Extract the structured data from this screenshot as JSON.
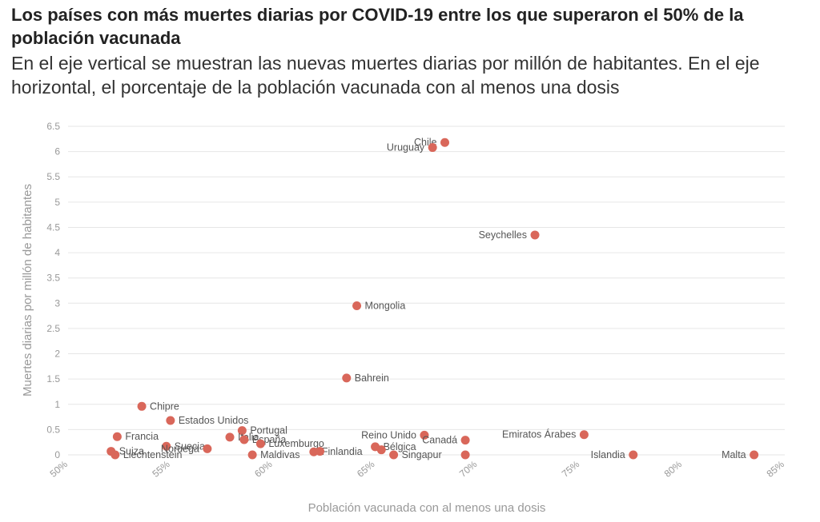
{
  "title": "Los países con más muertes diarias por COVID-19 entre los que superaron el 50% de la población vacunada",
  "subtitle": "En el eje vertical se muestran las nuevas muertes diarias por millón de habitantes. En el eje horizontal, el porcentaje de la población vacunada con al menos una dosis",
  "colors": {
    "point": "#d9675a",
    "grid": "#e6e6e6",
    "tick": "#999999"
  },
  "chart_data": {
    "type": "scatter",
    "xlabel": "Población vacunada con al menos una dosis",
    "ylabel": "Muertes diarias por millón de habitantes",
    "xlim": [
      50,
      85
    ],
    "ylim": [
      0,
      6.5
    ],
    "x_ticks": [
      "50%",
      "55%",
      "60%",
      "65%",
      "70%",
      "75%",
      "80%",
      "85%"
    ],
    "y_ticks": [
      "0",
      "0.5",
      "1",
      "1.5",
      "2",
      "2.5",
      "3",
      "3.5",
      "4",
      "4.5",
      "5",
      "5.5",
      "6",
      "6.5"
    ],
    "grid": true,
    "points": [
      {
        "label": "Chile",
        "x": 68.4,
        "y": 6.18,
        "anchor": "left"
      },
      {
        "label": "Uruguay",
        "x": 67.8,
        "y": 6.08,
        "anchor": "left"
      },
      {
        "label": "Seychelles",
        "x": 72.8,
        "y": 4.35,
        "anchor": "left"
      },
      {
        "label": "Mongolia",
        "x": 64.1,
        "y": 2.95,
        "anchor": "right"
      },
      {
        "label": "Bahrein",
        "x": 63.6,
        "y": 1.52,
        "anchor": "right"
      },
      {
        "label": "Chipre",
        "x": 53.6,
        "y": 0.96,
        "anchor": "right"
      },
      {
        "label": "Estados Unidos",
        "x": 55.0,
        "y": 0.68,
        "anchor": "right"
      },
      {
        "label": "Portugal",
        "x": 58.5,
        "y": 0.48,
        "anchor": "right"
      },
      {
        "label": "Reino Unido",
        "x": 67.4,
        "y": 0.39,
        "anchor": "left"
      },
      {
        "label": "Emiratos Árabes",
        "x": 75.2,
        "y": 0.4,
        "anchor": "left"
      },
      {
        "label": "Francia",
        "x": 52.4,
        "y": 0.36,
        "anchor": "right"
      },
      {
        "label": "Italia",
        "x": 57.9,
        "y": 0.35,
        "anchor": "right"
      },
      {
        "label": "España",
        "x": 58.6,
        "y": 0.3,
        "anchor": "right"
      },
      {
        "label": "Canadá",
        "x": 69.4,
        "y": 0.29,
        "anchor": "left"
      },
      {
        "label": "Luxemburgo",
        "x": 59.4,
        "y": 0.22,
        "anchor": "right"
      },
      {
        "label": "Suecia",
        "x": 54.8,
        "y": 0.17,
        "anchor": "right"
      },
      {
        "label": "Finlandia",
        "x": 62.0,
        "y": 0.06,
        "anchor": "right"
      },
      {
        "label": "Bélgica",
        "x": 65.0,
        "y": 0.16,
        "anchor": "right"
      },
      {
        "label": "Noruega",
        "x": 56.8,
        "y": 0.12,
        "anchor": "left"
      },
      {
        "label": "Suiza",
        "x": 52.1,
        "y": 0.07,
        "anchor": "right"
      },
      {
        "label": "Liechtenstein",
        "x": 52.3,
        "y": 0.0,
        "anchor": "right"
      },
      {
        "label": "Maldivas",
        "x": 59.0,
        "y": 0.0,
        "anchor": "right"
      },
      {
        "label": "Singapur",
        "x": 65.9,
        "y": 0.0,
        "anchor": "right"
      },
      {
        "label": "Islandia",
        "x": 77.6,
        "y": 0.0,
        "anchor": "left"
      },
      {
        "label": "Malta",
        "x": 83.5,
        "y": 0.0,
        "anchor": "left"
      },
      {
        "label": "",
        "x": 62.3,
        "y": 0.07,
        "anchor": "right"
      },
      {
        "label": "",
        "x": 65.3,
        "y": 0.1,
        "anchor": "right"
      },
      {
        "label": "",
        "x": 69.4,
        "y": 0.0,
        "anchor": "right"
      }
    ]
  }
}
